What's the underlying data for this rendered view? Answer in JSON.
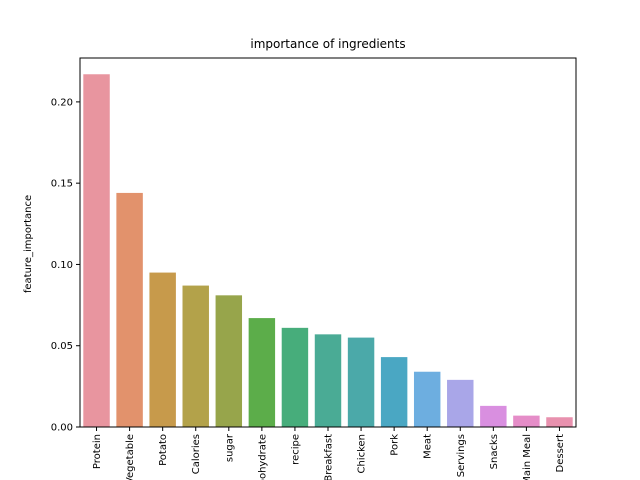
{
  "chart_data": {
    "type": "bar",
    "title": "importance of ingredients",
    "xlabel": "",
    "ylabel": "feature_importance",
    "ylim": [
      0,
      0.227
    ],
    "yticks": [
      "0.00",
      "0.05",
      "0.10",
      "0.15",
      "0.20"
    ],
    "grid": false,
    "categories": [
      "Protein",
      "Vegetable",
      "Potato",
      "Calories",
      "sugar",
      "Carbohydrate",
      "recipe",
      "Breakfast",
      "Chicken",
      "Pork",
      "Meat",
      "Servings",
      "Snacks",
      "Main Meal",
      "Dessert"
    ],
    "values": [
      0.217,
      0.144,
      0.095,
      0.087,
      0.081,
      0.067,
      0.061,
      0.057,
      0.055,
      0.043,
      0.034,
      0.029,
      0.013,
      0.007,
      0.006
    ],
    "colors": [
      "#e8959f",
      "#e2926c",
      "#c79a4b",
      "#b3a24a",
      "#97a54b",
      "#5cad4a",
      "#47ad7b",
      "#4aab95",
      "#4ba9a9",
      "#4aa7c3",
      "#6daee0",
      "#a9a6e8",
      "#d98fe0",
      "#e58dc8",
      "#e891ae"
    ]
  }
}
